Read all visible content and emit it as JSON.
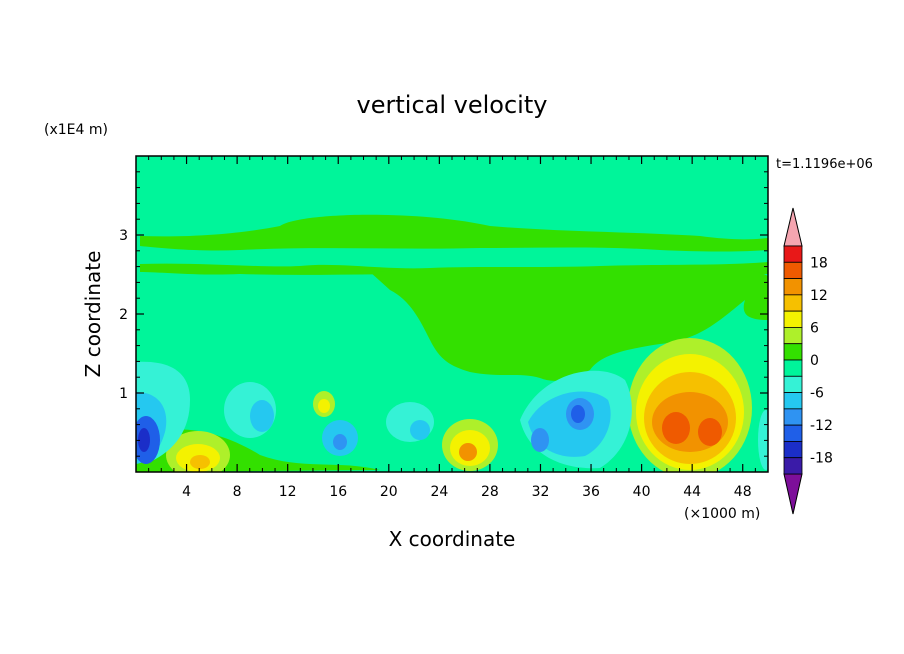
{
  "chart_data": {
    "type": "heatmap",
    "title": "vertical velocity",
    "xlabel": "X coordinate",
    "ylabel": "Z coordinate",
    "x_unit": "(×1000 m)",
    "y_unit": "(x1E4 m)",
    "time_label": "t=1.1196e+06",
    "xlim": [
      0,
      50
    ],
    "ylim": [
      0,
      4
    ],
    "x_ticks": [
      4,
      8,
      12,
      16,
      20,
      24,
      28,
      32,
      36,
      40,
      44,
      48
    ],
    "y_ticks": [
      1,
      2,
      3
    ],
    "colorbar": {
      "tick_labels": [
        "18",
        "12",
        "6",
        "0",
        "-6",
        "-12",
        "-18"
      ],
      "tick_values": [
        18,
        12,
        6,
        0,
        -6,
        -12,
        -18
      ],
      "levels": [
        -21,
        -18,
        -15,
        -12,
        -9,
        -6,
        -3,
        0,
        3,
        6,
        9,
        12,
        15,
        18,
        21
      ],
      "colors": [
        "#7d0f9a",
        "#3a1ba8",
        "#1b2ec8",
        "#1f5fe8",
        "#2f93f2",
        "#25c8f0",
        "#35f2d6",
        "#00f59a",
        "#33e000",
        "#aef02a",
        "#f4f200",
        "#f6c000",
        "#f29200",
        "#ef5a00",
        "#e81818",
        "#f5a5b0"
      ]
    },
    "features": [
      {
        "x": 43,
        "z": 0.55,
        "value": 15
      },
      {
        "x": 45.5,
        "z": 0.45,
        "value": 15
      },
      {
        "x": 26.5,
        "z": 0.3,
        "value": 12
      },
      {
        "x": 5.5,
        "z": 0.2,
        "value": 12
      },
      {
        "x": 14.5,
        "z": 0.85,
        "value": 9
      },
      {
        "x": 1.2,
        "z": 0.4,
        "value": -12
      },
      {
        "x": 35,
        "z": 0.75,
        "value": -12
      },
      {
        "x": 31.5,
        "z": 0.35,
        "value": -12
      },
      {
        "x": 16.5,
        "z": 0.4,
        "value": -9
      }
    ]
  }
}
